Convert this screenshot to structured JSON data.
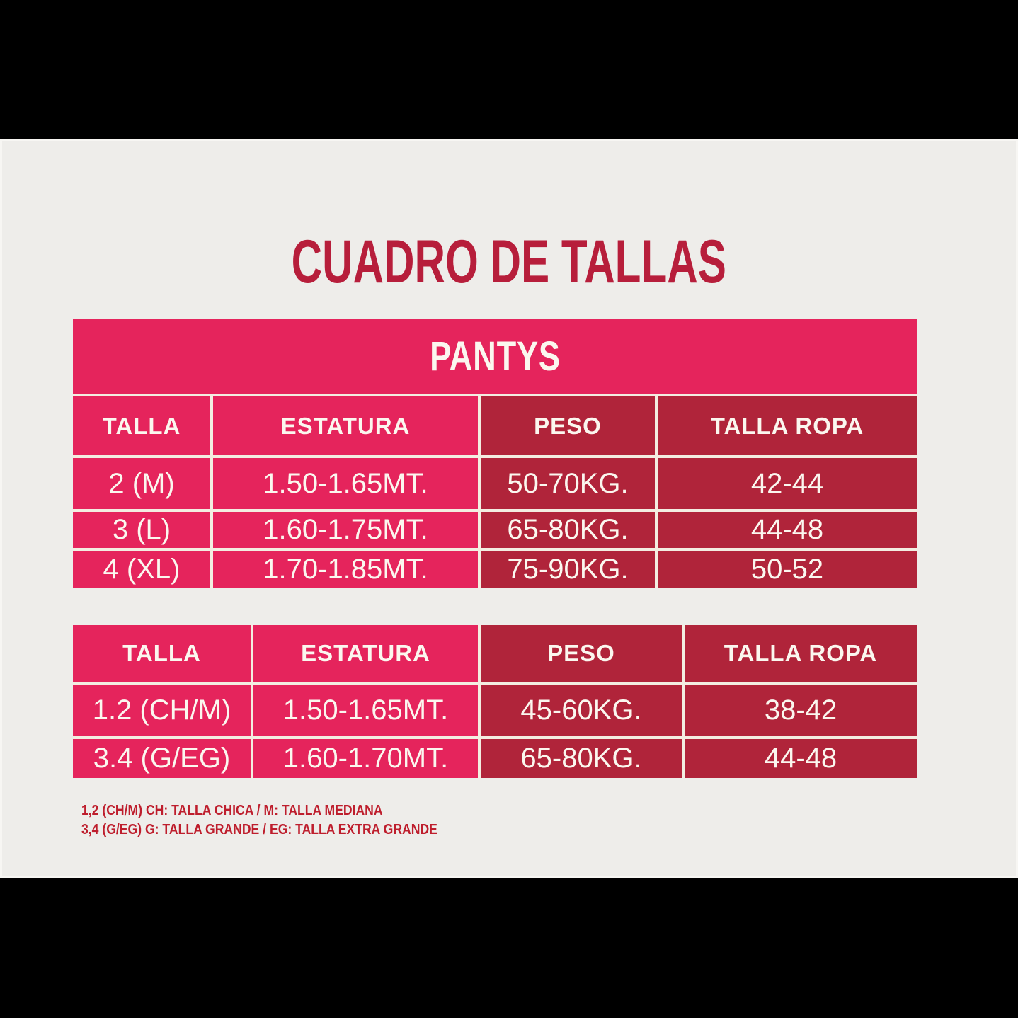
{
  "page": {
    "title": "CUADRO DE TALLAS"
  },
  "colors": {
    "background_bars": "#000000",
    "panel_background": "#EEEDEA",
    "pink": "#E5245C",
    "dark_red": "#B0243A",
    "title_red": "#B71E3B",
    "footnote_red": "#BE1E2D",
    "cell_separator": "#F3EDE1",
    "cell_text": "#FBF7EF"
  },
  "chart_data": [
    {
      "type": "table",
      "title": "PANTYS",
      "columns": [
        "TALLA",
        "ESTATURA",
        "PESO",
        "TALLA ROPA"
      ],
      "rows": [
        [
          "2 (M)",
          "1.50-1.65MT.",
          "50-70KG.",
          "42-44"
        ],
        [
          "3 (L)",
          "1.60-1.75MT.",
          "65-80KG.",
          "44-48"
        ],
        [
          "4 (XL)",
          "1.70-1.85MT.",
          "75-90KG.",
          "50-52"
        ]
      ]
    },
    {
      "type": "table",
      "title": "",
      "columns": [
        "TALLA",
        "ESTATURA",
        "PESO",
        "TALLA ROPA"
      ],
      "rows": [
        [
          "1.2 (CH/M)",
          "1.50-1.65MT.",
          "45-60KG.",
          "38-42"
        ],
        [
          "3.4 (G/EG)",
          "1.60-1.70MT.",
          "65-80KG.",
          "44-48"
        ]
      ]
    }
  ],
  "footnotes": [
    "1,2 (CH/M) CH: TALLA CHICA / M: TALLA MEDIANA",
    "3,4 (G/EG) G: TALLA GRANDE / EG: TALLA EXTRA GRANDE"
  ]
}
